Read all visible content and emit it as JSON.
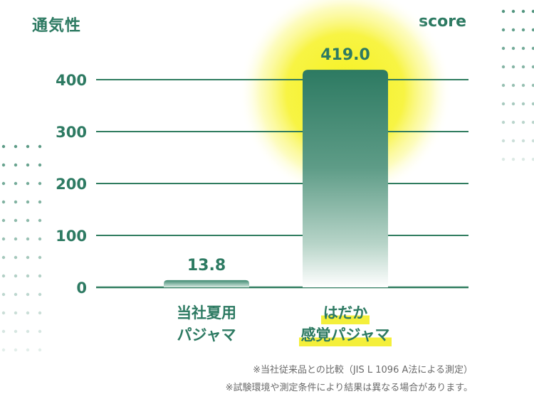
{
  "header": {
    "title": "通気性",
    "unit": "score"
  },
  "chart_data": {
    "type": "bar",
    "title": "通気性",
    "ylabel": "score",
    "categories": [
      "当社夏用パジャマ",
      "はだか感覚パジャマ"
    ],
    "category_lines": [
      [
        "当社夏用",
        "パジャマ"
      ],
      [
        "はだか",
        "感覚パジャマ"
      ]
    ],
    "values": [
      13.8,
      419.0
    ],
    "value_labels": [
      "13.8",
      "419.0"
    ],
    "yticks": [
      0,
      100,
      200,
      300,
      400
    ],
    "ytick_labels": [
      "0",
      "100",
      "200",
      "300",
      "400"
    ],
    "ylim": [
      0,
      400
    ],
    "grid": true,
    "highlight_category": "はだか感覚パジャマ"
  },
  "notes": [
    "※当社従来品との比較（JIS L 1096 A法による測定）",
    "※試験環境や測定条件により結果は異なる場合があります。"
  ],
  "colors": {
    "accent": "#2d7a62",
    "grid": "#2f7c5f",
    "glow": "#f6f21e",
    "highlight": "#f4ef3b",
    "note": "#6a6a6a"
  }
}
